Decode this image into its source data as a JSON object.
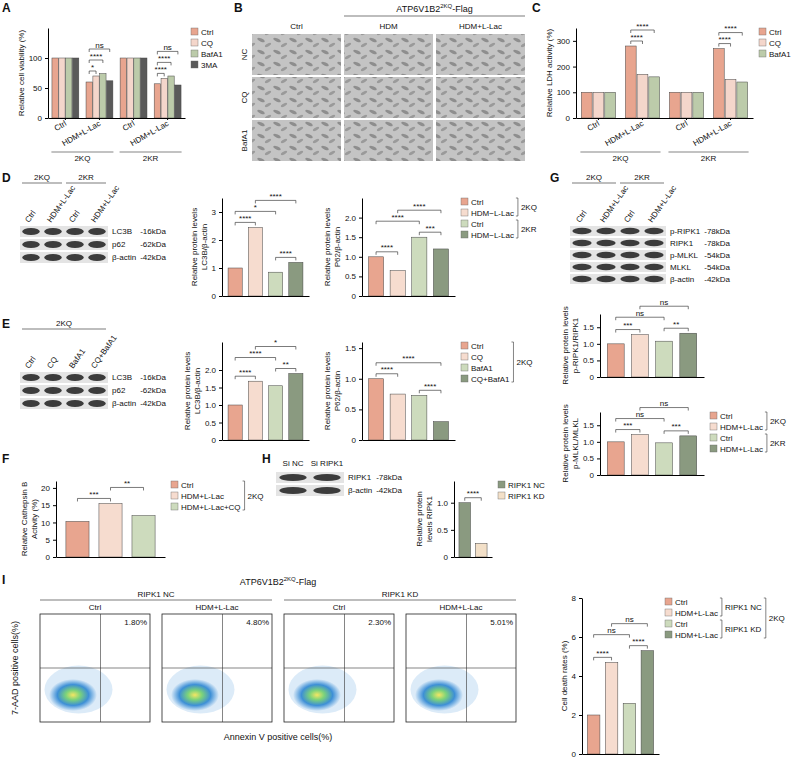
{
  "panel_labels": [
    "A",
    "B",
    "C",
    "D",
    "E",
    "F",
    "G",
    "H",
    "I"
  ],
  "chart_data": [
    {
      "type": "bar",
      "y_label": [
        "Relative cell viability (%)"
      ],
      "categories": [
        "Ctrl",
        "HDM+L-Lac",
        "Ctrl",
        "HDM+L-Lac"
      ],
      "category_groups": [
        "2KQ",
        "2KR"
      ],
      "series": [
        {
          "name": "Ctrl",
          "color": "#e8a58f",
          "values": [
            100,
            60,
            100,
            57
          ]
        },
        {
          "name": "CQ",
          "color": "#f4d6cb",
          "values": [
            100,
            70,
            100,
            66
          ]
        },
        {
          "name": "BafA1",
          "color": "#bccbaa",
          "values": [
            100,
            74,
            100,
            70
          ]
        },
        {
          "name": "3MA",
          "color": "#5a5a5a",
          "values": [
            100,
            62,
            100,
            55
          ]
        }
      ],
      "ylim": [
        0,
        150
      ],
      "yticks": [
        0,
        50,
        100
      ],
      "legend": "right",
      "annotations": [
        {
          "text": "*",
          "category": 1,
          "between": [
            0,
            1
          ]
        },
        {
          "text": "****",
          "category": 1,
          "between": [
            0,
            2
          ]
        },
        {
          "text": "ns",
          "category": 1,
          "between": [
            0,
            3
          ]
        },
        {
          "text": "****",
          "category": 3,
          "between": [
            0,
            1
          ]
        },
        {
          "text": "****",
          "category": 3,
          "between": [
            0,
            2
          ]
        },
        {
          "text": "ns",
          "category": 3,
          "between": [
            0,
            3
          ]
        }
      ]
    },
    {
      "type": "bar",
      "y_label": [
        "Relative LDH activity (%)"
      ],
      "categories": [
        "Ctrl",
        "HDM+L-Lac",
        "Ctrl",
        "HDM+L-Lac"
      ],
      "category_groups": [
        "2KQ",
        "2KR"
      ],
      "series": [
        {
          "name": "Ctrl",
          "color": "#e8a58f",
          "values": [
            100,
            280,
            100,
            270
          ]
        },
        {
          "name": "CQ",
          "color": "#f4d6cb",
          "values": [
            100,
            170,
            100,
            150
          ]
        },
        {
          "name": "BafA1",
          "color": "#bccbaa",
          "values": [
            100,
            160,
            100,
            140
          ]
        }
      ],
      "ylim": [
        0,
        350
      ],
      "yticks": [
        0,
        100,
        200,
        300
      ],
      "legend": "right",
      "annotations": [
        {
          "text": "****",
          "category": 1,
          "between": [
            0,
            1
          ]
        },
        {
          "text": "****",
          "category": 1,
          "between": [
            0,
            2
          ]
        },
        {
          "text": "****",
          "category": 3,
          "between": [
            0,
            1
          ]
        },
        {
          "text": "****",
          "category": 3,
          "between": [
            0,
            2
          ]
        }
      ]
    },
    {
      "type": "bar",
      "y_label": [
        "Relative protein levels",
        "LC3B/β-actin"
      ],
      "values": [
        1,
        2.45,
        0.85,
        1.2
      ],
      "colors": [
        "#e8a58f",
        "#f6dccf",
        "#cddbbd",
        "#8a9a80"
      ],
      "ylim": [
        0,
        3.5
      ],
      "yticks": [
        0,
        1,
        2,
        3
      ],
      "tick_labels": "y",
      "annotations": [
        {
          "text": "****",
          "between": [
            0,
            1
          ]
        },
        {
          "text": "****",
          "between": [
            2,
            3
          ]
        },
        {
          "text": "*",
          "between": [
            0,
            2
          ]
        },
        {
          "text": "****",
          "between": [
            1,
            3
          ]
        }
      ]
    },
    {
      "type": "bar",
      "y_label": [
        "Relative protein levels",
        "P62/β-actin"
      ],
      "categories": [
        "Ctrl",
        "HDM−L-Lac",
        "Ctrl",
        "HDM−L-Lac"
      ],
      "legend_groups": [
        "2KQ",
        "2KR"
      ],
      "legend": "right",
      "values": [
        1,
        0.65,
        1.5,
        1.2
      ],
      "colors": [
        "#e8a58f",
        "#f6dccf",
        "#cddbbd",
        "#8a9a80"
      ],
      "ylim": [
        0,
        2.5
      ],
      "yticks": [
        0,
        0.5,
        {
          "value": 1,
          "label": "1.0"
        },
        1.5,
        {
          "value": 2,
          "label": "2.0"
        }
      ],
      "tick_labels": "y",
      "annotations": [
        {
          "text": "****",
          "between": [
            0,
            1
          ]
        },
        {
          "text": "***",
          "between": [
            2,
            3
          ]
        },
        {
          "text": "****",
          "between": [
            0,
            2
          ]
        },
        {
          "text": "****",
          "between": [
            1,
            3
          ]
        }
      ]
    },
    {
      "type": "bar",
      "y_label": [
        "Relative protein levels",
        "LC3B/β-actin"
      ],
      "values": [
        1,
        1.68,
        1.55,
        1.9
      ],
      "colors": [
        "#e8a58f",
        "#f6dccf",
        "#cddbbd",
        "#8a9a80"
      ],
      "ylim": [
        0,
        2.8
      ],
      "yticks": [
        0,
        0.5,
        {
          "value": 1,
          "label": "1.0"
        },
        1.5,
        {
          "value": 2,
          "label": "2.0"
        }
      ],
      "tick_labels": "y",
      "annotations": [
        {
          "text": "****",
          "between": [
            0,
            1
          ]
        },
        {
          "text": "**",
          "between": [
            2,
            3
          ]
        },
        {
          "text": "****",
          "between": [
            0,
            2
          ]
        },
        {
          "text": "*",
          "between": [
            1,
            3
          ]
        }
      ]
    },
    {
      "type": "bar",
      "y_label": [
        "Relative protein levels",
        "P62/β-actin"
      ],
      "categories": [
        "Ctrl",
        "CQ",
        "BafA1",
        "CQ+BafA1"
      ],
      "legend_groups": [
        "2KQ"
      ],
      "legend": "right",
      "values": [
        1,
        0.75,
        0.73,
        0.3
      ],
      "colors": [
        "#e8a58f",
        "#f6dccf",
        "#cddbbd",
        "#8a9a80"
      ],
      "ylim": [
        0,
        1.6
      ],
      "yticks": [
        0,
        0.5,
        {
          "value": 1,
          "label": "1.0"
        },
        1.5
      ],
      "tick_labels": "y",
      "annotations": [
        {
          "text": "****",
          "between": [
            0,
            1
          ]
        },
        {
          "text": "****",
          "between": [
            2,
            3
          ]
        },
        {
          "text": "****",
          "between": [
            0,
            3
          ]
        }
      ]
    },
    {
      "type": "bar",
      "y_label": [
        "Relative Cathepsin B",
        "Activity (%)"
      ],
      "categories": [
        "Ctrl",
        "HDM+L-Lac",
        "HDM+L-Lac+CQ"
      ],
      "legend_groups": [
        "2KQ"
      ],
      "legend": "right",
      "values": [
        10.3,
        15.5,
        12
      ],
      "colors": [
        "#e8a58f",
        "#f6dccf",
        "#cddbbd"
      ],
      "ylim": [
        0,
        22
      ],
      "yticks": [
        0,
        5,
        10,
        15,
        20
      ],
      "tick_labels": "y",
      "annotations": [
        {
          "text": "***",
          "between": [
            0,
            1
          ]
        },
        {
          "text": "**",
          "between": [
            1,
            2
          ]
        }
      ]
    },
    {
      "type": "bar",
      "y_label": [
        "Relative protein levels",
        "p-RIPK1/RIPK1"
      ],
      "values": [
        1,
        1.28,
        1.08,
        1.32
      ],
      "colors": [
        "#e8a58f",
        "#f6dccf",
        "#cddbbd",
        "#8a9a80"
      ],
      "ylim": [
        0,
        1.9
      ],
      "yticks": [
        0,
        0.5,
        {
          "value": 1,
          "label": "1.0"
        },
        1.5
      ],
      "tick_labels": "y",
      "annotations": [
        {
          "text": "***",
          "between": [
            0,
            1
          ]
        },
        {
          "text": "**",
          "between": [
            2,
            3
          ]
        },
        {
          "text": "ns",
          "between": [
            0,
            2
          ]
        },
        {
          "text": "ns",
          "between": [
            1,
            3
          ]
        }
      ]
    },
    {
      "type": "bar",
      "y_label": [
        "Relative protein levels",
        "p-MLKL/MLKL"
      ],
      "categories": [
        "Ctrl",
        "HDM+L-Lac",
        "Ctrl",
        "HDM+L-Lac"
      ],
      "legend_groups": [
        "2KQ",
        "2KR"
      ],
      "legend": "right",
      "values": [
        1,
        1.22,
        0.97,
        1.18
      ],
      "colors": [
        "#e8a58f",
        "#f6dccf",
        "#cddbbd",
        "#8a9a80"
      ],
      "ylim": [
        0,
        1.9
      ],
      "yticks": [
        0,
        0.5,
        {
          "value": 1,
          "label": "1.0"
        },
        1.5
      ],
      "tick_labels": "y",
      "annotations": [
        {
          "text": "***",
          "between": [
            0,
            1
          ]
        },
        {
          "text": "***",
          "between": [
            2,
            3
          ]
        },
        {
          "text": "ns",
          "between": [
            0,
            2
          ]
        },
        {
          "text": "ns",
          "between": [
            1,
            3
          ]
        }
      ]
    },
    {
      "type": "bar",
      "y_label": [
        "Relative protein",
        "levels RIPK1"
      ],
      "categories": [
        "RIPK1 NC",
        "RIPK1 KD"
      ],
      "legend": "right",
      "values": [
        1,
        0.25
      ],
      "colors": [
        "#8a9a80",
        "#f3e0c8"
      ],
      "ylim": [
        0,
        1.4
      ],
      "yticks": [
        0,
        0.5,
        {
          "value": 1,
          "label": "1.0"
        }
      ],
      "tick_labels": "y",
      "annotations": [
        {
          "text": "****",
          "between": [
            0,
            1
          ]
        }
      ]
    },
    {
      "type": "bar",
      "y_label": [
        "Cell death rates (%)"
      ],
      "categories": [
        "Ctrl",
        "HDM+L-Lac",
        "Ctrl",
        "HDM+L-Lac"
      ],
      "legend_groups": [
        "RIPK1 NC",
        "RIPK1 KD"
      ],
      "legend_outer": "2KQ",
      "legend": "right",
      "values": [
        2,
        4.7,
        2.6,
        5.3
      ],
      "colors": [
        "#e8a58f",
        "#f6dccf",
        "#cddbbd",
        "#8a9a80"
      ],
      "ylim": [
        0,
        8
      ],
      "yticks": [
        0,
        2,
        4,
        6,
        8
      ],
      "tick_labels": "y",
      "annotations": [
        {
          "text": "****",
          "between": [
            0,
            1
          ]
        },
        {
          "text": "****",
          "between": [
            2,
            3
          ]
        },
        {
          "text": "ns",
          "between": [
            0,
            2
          ]
        },
        {
          "text": "ns",
          "between": [
            1,
            3
          ]
        }
      ]
    }
  ],
  "images": {
    "header": {
      "base": "ATP6V1B2",
      "sup": "2KQ",
      "tail": "-Flag"
    },
    "columns": [
      "Ctrl",
      "HDM",
      "HDM+L-Lac"
    ],
    "rows": [
      "NC",
      "CQ",
      "BafA1"
    ]
  },
  "blots": [
    {
      "headers": [
        "2KQ",
        "2KR"
      ],
      "lanes": [
        "Ctrl",
        "HDM+L-Lac",
        "Ctrl",
        "HDM+L-Lac"
      ],
      "rows": [
        {
          "label": "LC3B",
          "mw": "-16kDa"
        },
        {
          "label": "p62",
          "mw": "-62kDa"
        },
        {
          "label": "β-actin",
          "mw": "-42kDa"
        }
      ]
    },
    {
      "headers": [
        "2KQ"
      ],
      "lanes": [
        "Ctrl",
        "CQ",
        "BafA1",
        "CQ+BafA1"
      ],
      "rows": [
        {
          "label": "LC3B",
          "mw": "-16kDa"
        },
        {
          "label": "p62",
          "mw": "-62kDa"
        },
        {
          "label": "β-actin",
          "mw": "-42kDa"
        }
      ]
    },
    {
      "headers": [
        "2KQ",
        "2KR"
      ],
      "lanes": [
        "Ctrl",
        "HDM+L-Lac",
        "Ctrl",
        "HDM+L-Lac"
      ],
      "rows": [
        {
          "label": "p-RIPK1",
          "mw": "-78kDa"
        },
        {
          "label": "RIPK1",
          "mw": "-78kDa"
        },
        {
          "label": "p-MLKL",
          "mw": "-54kDa"
        },
        {
          "label": "MLKL",
          "mw": "-54kDa"
        },
        {
          "label": "β-actin",
          "mw": "-42kDa"
        }
      ]
    },
    {
      "headers": [],
      "lanes": [
        "Si NC",
        "Si RIPK1"
      ],
      "rows": [
        {
          "label": "RIPK1",
          "mw": "-78kDa"
        },
        {
          "label": "β-actin",
          "mw": "-42kDa"
        }
      ]
    }
  ],
  "flow": {
    "header": {
      "base": "ATP6V1B2",
      "sup": "2KQ",
      "tail": "-Flag"
    },
    "groups": [
      "RIPK1 NC",
      "RIPK1 KD"
    ],
    "conditions": [
      "Ctrl",
      "HDM+L-Lac",
      "Ctrl",
      "HDM+L-Lac"
    ],
    "quadrant_labels": [
      "1.80%",
      "4.80%",
      "2.30%",
      "5.01%"
    ],
    "x_label": "Annexin V positive cells(%)",
    "y_label": "7-AAD positive cells(%)"
  }
}
